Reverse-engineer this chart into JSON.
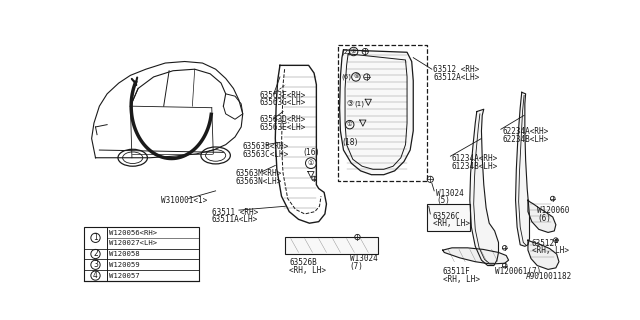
{
  "bg_color": "#ffffff",
  "line_color": "#1a1a1a",
  "diagram_number": "A901001182",
  "legend_rows": [
    {
      "sym": "1",
      "t1": "W120056<RH>",
      "t2": "W120027<LH>"
    },
    {
      "sym": "2",
      "t1": "W120058",
      "t2": ""
    },
    {
      "sym": "3",
      "t1": "W120059",
      "t2": ""
    },
    {
      "sym": "4",
      "t1": "W120057",
      "t2": ""
    }
  ]
}
